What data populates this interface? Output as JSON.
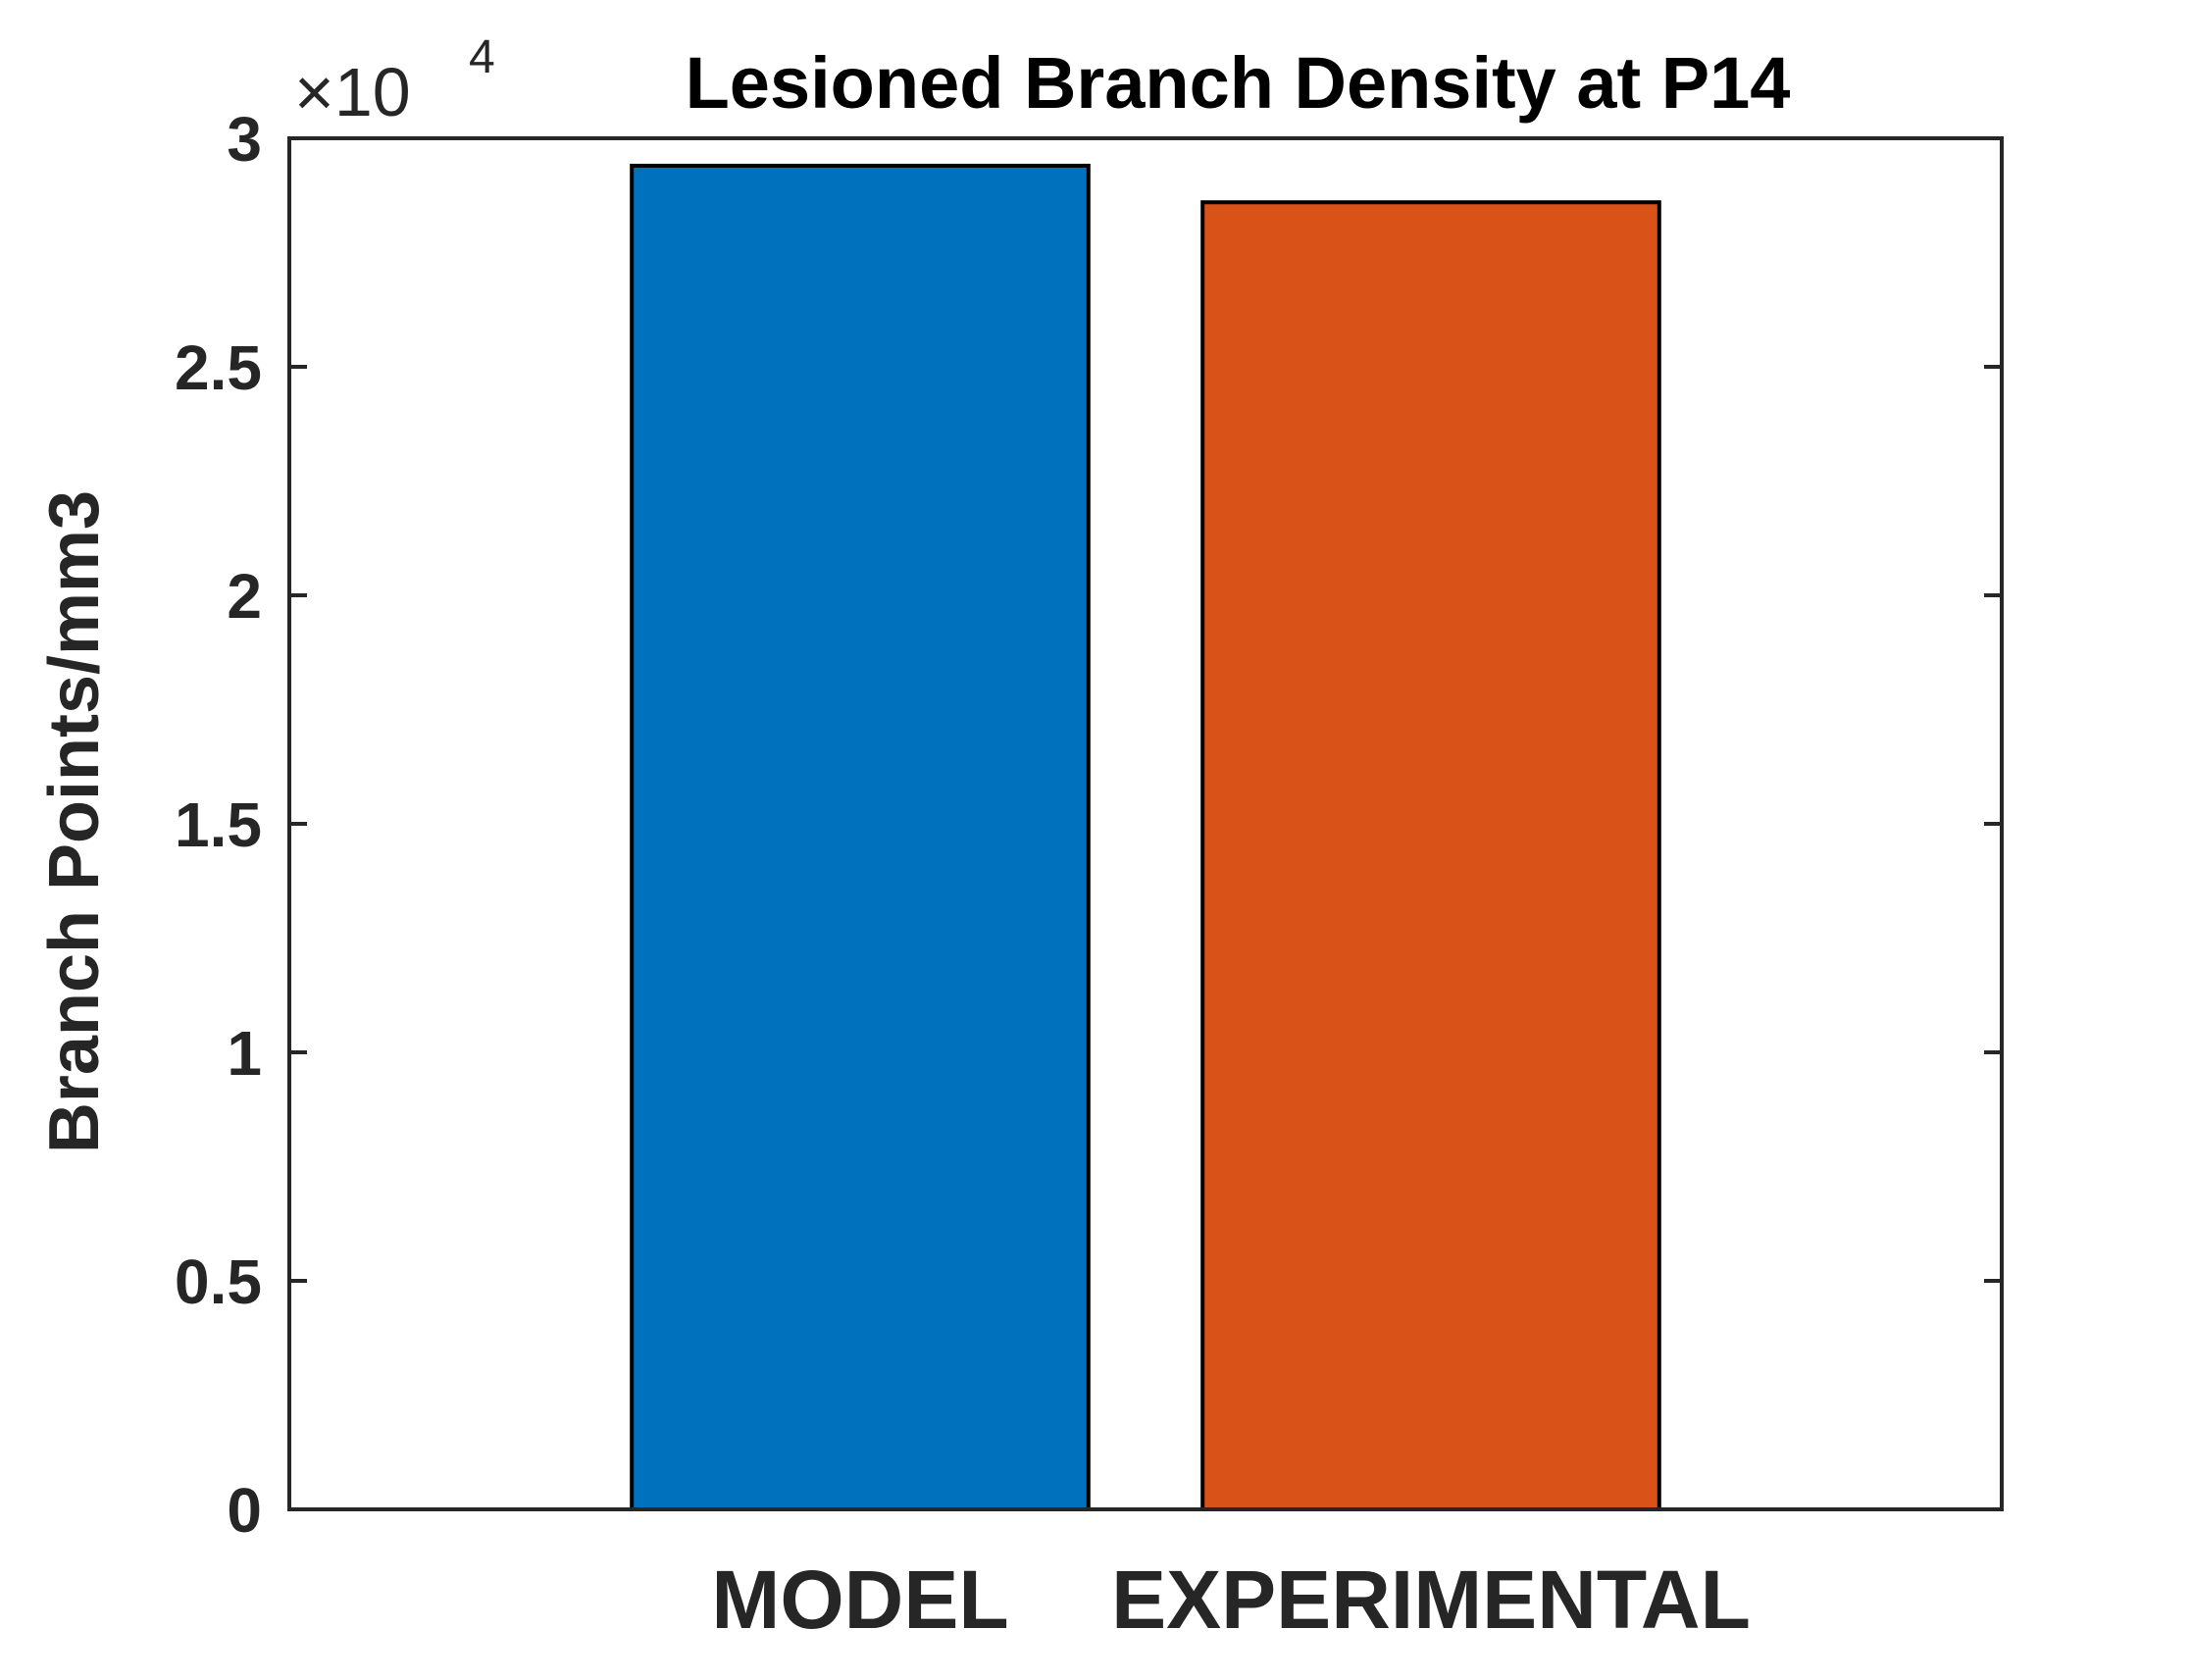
{
  "chart_data": {
    "type": "bar",
    "title": "Lesioned Branch Density at P14",
    "ylabel": "Branch Points/mm3",
    "xlabel": "",
    "categories": [
      "MODEL",
      "EXPERIMENTAL"
    ],
    "values": [
      29400,
      28600
    ],
    "bar_colors": [
      "#0072BD",
      "#D95319"
    ],
    "ylim": [
      0,
      30000
    ],
    "xlim": [
      0,
      3
    ],
    "yticks": [
      0,
      5000,
      10000,
      15000,
      20000,
      25000,
      30000
    ],
    "ytick_labels": [
      "0",
      "0.5",
      "1",
      "1.5",
      "2",
      "2.5",
      "3"
    ],
    "exponent_label": {
      "base": "×10",
      "power": "4"
    },
    "grid": false,
    "legend": "none"
  }
}
